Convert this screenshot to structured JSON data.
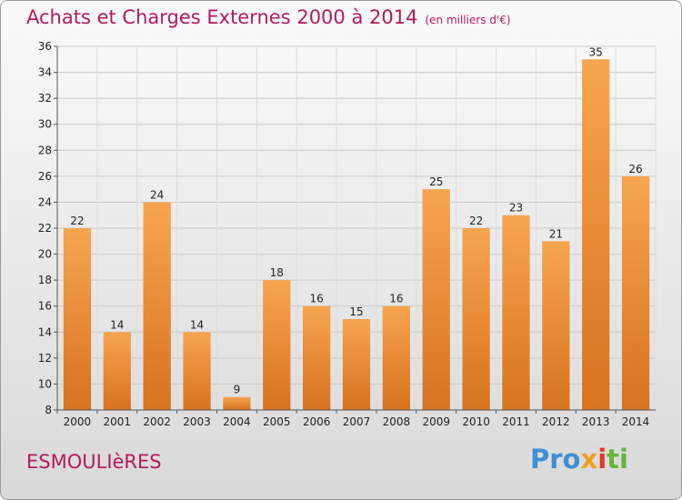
{
  "header": {
    "title": "Achats et Charges Externes 2000 à 2014",
    "subtitle": "(en milliers d'€)"
  },
  "footer": {
    "commune": "ESMOULIèRES",
    "logo": [
      "Pro",
      "x",
      "i",
      "ti"
    ]
  },
  "chart_data": {
    "type": "bar",
    "title": "Achats et Charges Externes 2000 à 2014",
    "subtitle": "(en milliers d'€)",
    "categories": [
      "2000",
      "2001",
      "2002",
      "2003",
      "2004",
      "2005",
      "2006",
      "2007",
      "2008",
      "2009",
      "2010",
      "2011",
      "2012",
      "2013",
      "2014"
    ],
    "values": [
      22,
      14,
      24,
      14,
      9,
      18,
      16,
      15,
      16,
      25,
      22,
      23,
      21,
      35,
      26
    ],
    "ylim": [
      8,
      36
    ],
    "yticks": [
      8,
      10,
      12,
      14,
      16,
      18,
      20,
      22,
      24,
      26,
      28,
      30,
      32,
      34,
      36
    ],
    "grid": true,
    "bar_color_top": "#f7a550",
    "bar_color_bottom": "#d8721e",
    "data_labels": true
  }
}
